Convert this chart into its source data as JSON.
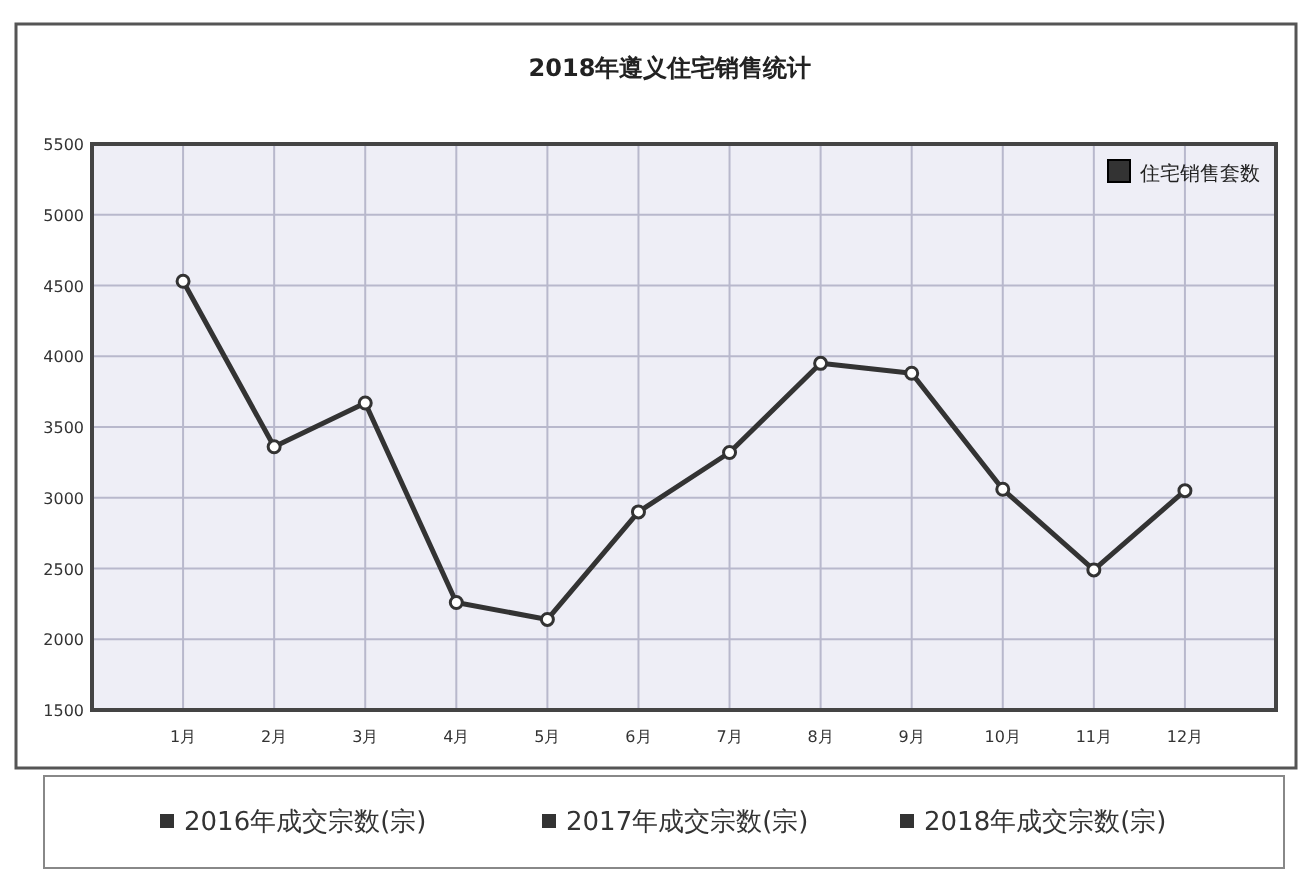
{
  "chart_data": {
    "type": "line",
    "title": "2018年遵义住宅销售统计",
    "categories": [
      "1月",
      "2月",
      "3月",
      "4月",
      "5月",
      "6月",
      "7月",
      "8月",
      "9月",
      "10月",
      "11月",
      "12月"
    ],
    "series": [
      {
        "name": "住宅销售套数",
        "color": "#333333",
        "values": [
          4530,
          3360,
          3670,
          2260,
          2140,
          2900,
          3320,
          3950,
          3880,
          3060,
          2490,
          3050
        ]
      }
    ],
    "ylim": [
      1500,
      5500
    ],
    "yticks": [
      1500,
      2000,
      2500,
      3000,
      3500,
      4000,
      4500,
      5000,
      5500
    ],
    "grid": true,
    "legend": "top right",
    "marker": "circle",
    "annotations": [
      "2016年成交宗数(宗)",
      "2017年成交宗数(宗)",
      "2018年成交宗数(宗)"
    ]
  }
}
